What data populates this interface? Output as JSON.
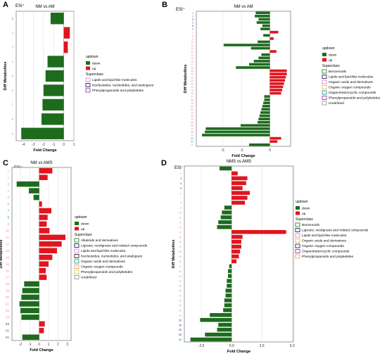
{
  "figure": {
    "panels": [
      {
        "letter": "A",
        "mode": "ESI⁺",
        "title": "NM vs AM",
        "xlabel": "Fold Change",
        "ylabel": "Diff Metabolites"
      },
      {
        "letter": "B",
        "mode": "ESI⁺",
        "title": "NM vs AM",
        "xlabel": "Fold Change",
        "ylabel": "Diff Metabolites"
      },
      {
        "letter": "C",
        "mode": "ESI⁻",
        "title": "NM vs AMS",
        "xlabel": "Fold Change",
        "ylabel": "Diff Metabolites"
      },
      {
        "letter": "D",
        "mode": "ESI⁻",
        "title": "NMS vs AMS",
        "xlabel": "Fold Change",
        "ylabel": "Diff Metabolites"
      }
    ]
  },
  "colors": {
    "down": "#1e6b1e",
    "up": "#e0151f",
    "benz": "#2a8a2a",
    "lign": "#23236b",
    "lipid": "#e38ec5",
    "nucl": "#2a2a2a",
    "orgacid": "#e3c25a",
    "orgoxy": "#e8a06a",
    "orghet": "#2a9a9a",
    "phenyl": "#9a3aa6",
    "alkal": "#2a8a2a",
    "undef": "#9a9a9a"
  },
  "chart_data": [
    {
      "type": "bar",
      "orientation": "horizontal",
      "panel": "A",
      "categories": [
        "1",
        "2",
        "3",
        "4",
        "5",
        "6",
        "7",
        "8",
        "9"
      ],
      "values": [
        -1.3,
        0.6,
        0.4,
        -1.6,
        -1.8,
        -2.0,
        -2.1,
        -2.2,
        -4.2
      ],
      "xlim": [
        -4.7,
        1.0
      ],
      "xticks": [
        "-4",
        "-3",
        "-2",
        "-1",
        "0",
        "1"
      ],
      "category_classes": [
        "phenyl",
        "lipid",
        "lipid",
        "lipid",
        "lipid",
        "lipid",
        "lipid",
        "lipid",
        "lipid"
      ],
      "legend": {
        "title": "updown",
        "entries": [
          "down",
          "up"
        ],
        "superclass_title": "Superclass",
        "superclass": [
          {
            "label": "Lipids and lipid-like molecules",
            "cls": "lipid"
          },
          {
            "label": "Nucleosides, nucleotides, and analogues",
            "cls": "lign"
          },
          {
            "label": "Phenylpropanoids and polyketides",
            "cls": "phenyl"
          }
        ]
      }
    },
    {
      "type": "bar",
      "orientation": "horizontal",
      "panel": "B",
      "categories": [
        "1",
        "2",
        "3",
        "4",
        "5",
        "6",
        "7",
        "8",
        "9",
        "10",
        "11",
        "12",
        "13",
        "14",
        "15",
        "16",
        "17",
        "18",
        "19",
        "20",
        "21",
        "22",
        "23",
        "24",
        "25",
        "26",
        "27",
        "28",
        "29",
        "30",
        "31",
        "32",
        "33",
        "34",
        "35",
        "36",
        "37",
        "38",
        "39",
        "40",
        "41",
        "42"
      ],
      "values": [
        -1.5,
        -1.6,
        -1.2,
        -1.4,
        -0.8,
        -1.0,
        0.9,
        -0.7,
        0.4,
        -1.3,
        -4.9,
        -2.0,
        0.7,
        -0.9,
        -1.2,
        -1.7,
        -2.2,
        -3.6,
        1.8,
        1.8,
        1.7,
        1.6,
        1.5,
        1.4,
        1.3,
        1.2,
        -0.6,
        -0.6,
        -0.7,
        -0.8,
        -0.9,
        -1.0,
        -1.1,
        -1.2,
        -1.3,
        -3.1,
        -6.8,
        -6.9,
        -7.2,
        1.2,
        0.8,
        -2.2
      ],
      "xlim": [
        -7.8,
        2.2
      ],
      "xticks": [
        "-5",
        "-3",
        "0"
      ],
      "category_classes": [
        "phenyl",
        "orghet",
        "lign",
        "phenyl",
        "lign",
        "orghet",
        "lipid",
        "lipid",
        "lipid",
        "lipid",
        "lipid",
        "lipid",
        "lipid",
        "lipid",
        "lipid",
        "lipid",
        "lipid",
        "lipid",
        "lipid",
        "lipid",
        "lipid",
        "lipid",
        "lipid",
        "lipid",
        "lipid",
        "lipid",
        "lipid",
        "lipid",
        "lipid",
        "lipid",
        "lipid",
        "lipid",
        "lipid",
        "lipid",
        "lipid",
        "lipid",
        "lipid",
        "lipid",
        "lipid",
        "orghet",
        "orghet",
        "orgacid"
      ],
      "legend": {
        "title": "updown",
        "entries": [
          "down",
          "up"
        ],
        "superclass_title": "Superclass",
        "superclass": [
          {
            "label": "Benzenoids",
            "cls": "benz"
          },
          {
            "label": "Lipids and lipid-like molecules",
            "cls": "lign"
          },
          {
            "label": "Organic acids and derivatives",
            "cls": "lipid"
          },
          {
            "label": "Organic oxygen compounds",
            "cls": "orgacid"
          },
          {
            "label": "Organoheterocyclic compounds",
            "cls": "orghet"
          },
          {
            "label": "Phenylpropanoids and polyketides",
            "cls": "phenyl"
          },
          {
            "label": "Undefined",
            "cls": "undef"
          }
        ]
      }
    },
    {
      "type": "bar",
      "orientation": "horizontal",
      "panel": "C",
      "categories": [
        "1",
        "2",
        "3",
        "4",
        "5",
        "6",
        "7",
        "8",
        "9",
        "10",
        "11",
        "12",
        "13",
        "14",
        "15",
        "16",
        "17",
        "18",
        "19",
        "20",
        "21",
        "22",
        "23",
        "24",
        "25",
        "26"
      ],
      "values": [
        1.4,
        0.9,
        -2.4,
        -1.1,
        -0.6,
        0.3,
        1.3,
        0.9,
        0.8,
        1.1,
        2.8,
        2.4,
        1.9,
        1.4,
        1.0,
        0.7,
        0.8,
        -1.6,
        -1.8,
        -1.9,
        -2.1,
        -2.0,
        -1.9,
        0.6,
        0.5,
        -1.8
      ],
      "xlim": [
        -2.9,
        3.4
      ],
      "xticks": [
        "-2",
        "-1",
        "0",
        "1",
        "2",
        "3"
      ],
      "category_classes": [
        "lipid",
        "orgacid",
        "lipid",
        "lipid",
        "orgoxy",
        "undef",
        "orghet",
        "orghet",
        "lipid",
        "lipid",
        "lipid",
        "lipid",
        "lipid",
        "lipid",
        "lipid",
        "lipid",
        "lipid",
        "lipid",
        "lipid",
        "lipid",
        "lipid",
        "lipid",
        "lipid",
        "lign",
        "alkal",
        "benz"
      ],
      "legend": {
        "title": "updown",
        "entries": [
          "down",
          "up"
        ],
        "superclass_title": "Superclass",
        "superclass": [
          {
            "label": "Alkaloids and derivatives",
            "cls": "alkal"
          },
          {
            "label": "Lignans, neolignans and related compounds",
            "cls": "lign"
          },
          {
            "label": "Lipids and lipid-like molecules",
            "cls": "lipid"
          },
          {
            "label": "Nucleosides, nucleotides, and analogues",
            "cls": "nucl"
          },
          {
            "label": "Organic acids and derivatives",
            "cls": "orghet"
          },
          {
            "label": "Organic oxygen compounds",
            "cls": "orgoxy"
          },
          {
            "label": "Phenylpropanoids and polyketides",
            "cls": "orgacid"
          },
          {
            "label": "Undefined",
            "cls": "undef"
          }
        ]
      }
    },
    {
      "type": "bar",
      "orientation": "horizontal",
      "panel": "D",
      "categories": [
        "1",
        "2",
        "3",
        "4",
        "5",
        "6",
        "7",
        "8",
        "9",
        "10",
        "11",
        "12",
        "13",
        "14",
        "15",
        "16",
        "17",
        "18",
        "19",
        "20",
        "21",
        "22",
        "23",
        "24",
        "25",
        "26",
        "27",
        "28",
        "29",
        "30",
        "31",
        "32",
        "33",
        "34",
        "35",
        "36"
      ],
      "values": [
        -1.0,
        0.5,
        1.3,
        1.2,
        0.9,
        1.5,
        1.3,
        1.1,
        -0.6,
        -0.8,
        -0.9,
        -1.1,
        -1.2,
        4.5,
        0.9,
        0.8,
        0.8,
        0.7,
        0.6,
        0.4,
        -0.2,
        -0.3,
        -0.3,
        -0.4,
        -0.4,
        -0.5,
        -0.5,
        -0.6,
        -0.6,
        -0.7,
        -1.8,
        -2.6,
        -1.1,
        -1.2,
        -2.2,
        -3.4
      ],
      "xlim": [
        -3.9,
        5.1
      ],
      "xticks": [
        "-2.5",
        "0.0",
        "2.5",
        "5.0"
      ],
      "category_classes": [
        "lipid",
        "lipid",
        "lign",
        "lign",
        "lign",
        "orgacid",
        "orgacid",
        "orgacid",
        "lipid",
        "lipid",
        "lipid",
        "lipid",
        "lipid",
        "lipid",
        "lipid",
        "lipid",
        "lipid",
        "lipid",
        "lipid",
        "lipid",
        "lipid",
        "lipid",
        "lipid",
        "lipid",
        "lipid",
        "lipid",
        "lipid",
        "lipid",
        "lipid",
        "lipid",
        "lipid",
        "lign",
        "lign",
        "lign",
        "lign",
        "benz"
      ],
      "legend": {
        "title": "updown",
        "entries": [
          "down",
          "up"
        ],
        "superclass_title": "Superclass",
        "superclass": [
          {
            "label": "Benzenoids",
            "cls": "benz"
          },
          {
            "label": "Lignans, neolignans and related compounds",
            "cls": "lign"
          },
          {
            "label": "Lipids and lipid-like molecules",
            "cls": "lipid"
          },
          {
            "label": "Organic acids and derivatives",
            "cls": "orgacid"
          },
          {
            "label": "Organic oxygen compounds",
            "cls": "lign"
          },
          {
            "label": "Organoheterocyclic compounds",
            "cls": "phenyl"
          },
          {
            "label": "Phenylpropanoids and polyketides",
            "cls": "orgoxy"
          }
        ]
      }
    }
  ]
}
